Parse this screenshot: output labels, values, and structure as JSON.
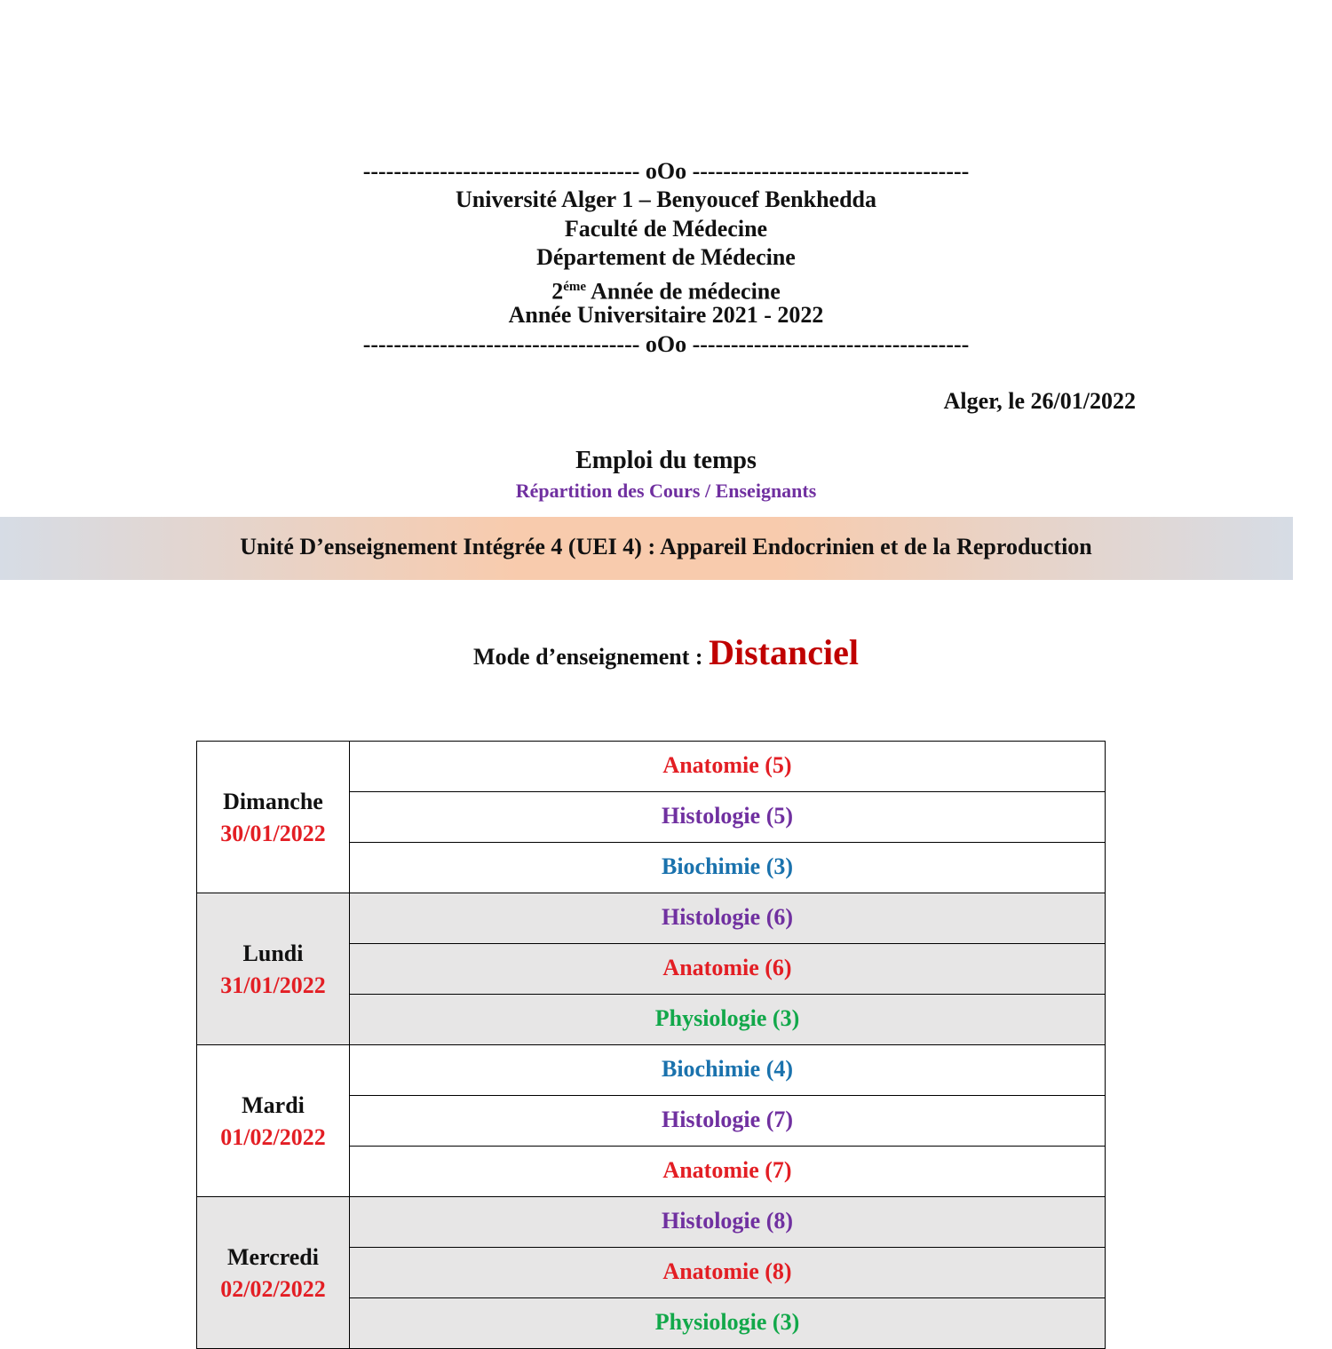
{
  "header": {
    "separator_top": "------------------------------------ oOo ------------------------------------",
    "lines": [
      "Université Alger 1 – Benyoucef Benkhedda",
      "Faculté de Médecine",
      "Département de Médecine"
    ],
    "year_number": "2",
    "year_sup": "éme",
    "year_rest": " Année de médecine",
    "academic_year": "Année Universitaire 2021 - 2022",
    "separator_bottom": "------------------------------------ oOo ------------------------------------"
  },
  "place_date": "Alger, le 26/01/2022",
  "title": "Emploi du temps",
  "subtitle": "Répartition des Cours / Enseignants",
  "banner": "Unité D’enseignement Intégrée 4 (UEI 4) : Appareil Endocrinien et de la Reproduction",
  "mode": {
    "label": "Mode d’enseignement :",
    "value": "Distanciel"
  },
  "table": {
    "days": [
      {
        "name": "Dimanche",
        "date": "30/01/2022",
        "courses": [
          {
            "text": "Anatomie (5)",
            "color": "#e31e24"
          },
          {
            "text": "Histologie (5)",
            "color": "#7030a0"
          },
          {
            "text": "Biochimie (3)",
            "color": "#1a72ad"
          }
        ]
      },
      {
        "name": "Lundi",
        "date": "31/01/2022",
        "courses": [
          {
            "text": "Histologie (6)",
            "color": "#7030a0"
          },
          {
            "text": "Anatomie (6)",
            "color": "#e31e24"
          },
          {
            "text": "Physiologie (3)",
            "color": "#12a84a"
          }
        ]
      },
      {
        "name": "Mardi",
        "date": "01/02/2022",
        "courses": [
          {
            "text": "Biochimie (4)",
            "color": "#1a72ad"
          },
          {
            "text": "Histologie (7)",
            "color": "#7030a0"
          },
          {
            "text": "Anatomie (7)",
            "color": "#e31e24"
          }
        ]
      },
      {
        "name": "Mercredi",
        "date": "02/02/2022",
        "courses": [
          {
            "text": "Histologie (8)",
            "color": "#7030a0"
          },
          {
            "text": "Anatomie (8)",
            "color": "#e31e24"
          },
          {
            "text": "Physiologie (3)",
            "color": "#12a84a"
          }
        ]
      }
    ]
  }
}
